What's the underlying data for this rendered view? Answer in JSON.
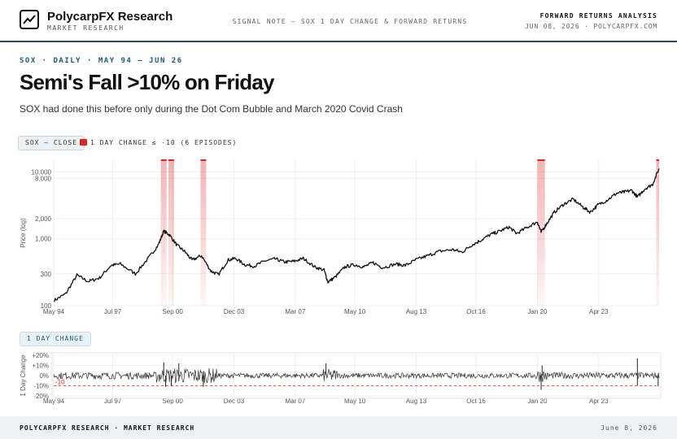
{
  "header": {
    "brand": "PolycarpFX Research",
    "brand_sub": "MARKET RESEARCH",
    "center": "SIGNAL NOTE — SOX 1 DAY CHANGE & FORWARD RETURNS",
    "right_title": "FORWARD RETURNS ANALYSIS",
    "right_sub": "JUN 08, 2026 · POLYCARPFX.COM"
  },
  "eyebrow": "SOX · DAILY · MAY 94 — JUN 26",
  "title": "Semi's Fall >10% on Friday",
  "subtitle": "SOX had done this before only during the Dot Com Bubble and March 2020 Covid Crash",
  "colors": {
    "accent": "#1a5b7a",
    "episode": "#e02424",
    "line": "#111111"
  },
  "chart_data": [
    {
      "type": "line",
      "legend": {
        "series_label": "SOX — CLOSE",
        "episode_label": "1 DAY CHANGE ≤ -10 (6 EPISODES)",
        "position": "top-left"
      },
      "ylabel": "Price (log)",
      "scale": "log",
      "ylim": [
        100,
        15000
      ],
      "y_ticks": [
        {
          "value": 10000,
          "label": "10,000"
        },
        {
          "value": 8000,
          "label": "8,000"
        },
        {
          "value": 2000,
          "label": "2,000"
        },
        {
          "value": 1000,
          "label": "1,000"
        },
        {
          "value": 300,
          "label": "300"
        },
        {
          "value": 100,
          "label": "100"
        }
      ],
      "x_ticks": [
        "May 94",
        "Jul 97",
        "Sep 00",
        "Dec 03",
        "Mar 07",
        "May 10",
        "Aug 13",
        "Oct 16",
        "Jan 20",
        "Apr 23"
      ],
      "xlim": [
        1994.37,
        2026.45
      ],
      "x": [
        1994.4,
        1995.0,
        1995.6,
        1996.2,
        1996.8,
        1997.4,
        1997.9,
        1998.7,
        1999.4,
        1999.9,
        2000.2,
        2000.5,
        2000.9,
        2001.3,
        2001.7,
        2002.2,
        2002.7,
        2003.1,
        2003.6,
        2004.0,
        2004.5,
        2005.0,
        2005.6,
        2006.1,
        2006.6,
        2007.1,
        2007.6,
        2008.2,
        2008.7,
        2008.9,
        2009.3,
        2009.8,
        2010.3,
        2010.8,
        2011.3,
        2011.8,
        2012.5,
        2013.0,
        2013.6,
        2014.2,
        2014.8,
        2015.5,
        2016.0,
        2016.5,
        2017.0,
        2017.5,
        2018.0,
        2018.5,
        2018.9,
        2019.5,
        2020.0,
        2020.2,
        2020.5,
        2020.9,
        2021.4,
        2021.9,
        2022.4,
        2022.8,
        2023.2,
        2023.7,
        2024.2,
        2024.6,
        2025.0,
        2025.3,
        2025.7,
        2026.1,
        2026.45
      ],
      "y": [
        120,
        150,
        285,
        230,
        260,
        400,
        420,
        300,
        520,
        800,
        1300,
        1150,
        800,
        650,
        480,
        560,
        330,
        290,
        480,
        510,
        410,
        390,
        470,
        500,
        450,
        460,
        510,
        380,
        340,
        225,
        270,
        380,
        410,
        380,
        440,
        370,
        420,
        400,
        490,
        560,
        650,
        690,
        630,
        800,
        950,
        1150,
        1300,
        1500,
        1200,
        1500,
        1800,
        1250,
        1700,
        2500,
        3300,
        3900,
        3000,
        2500,
        3200,
        3800,
        4800,
        5000,
        5300,
        4200,
        5600,
        6500,
        11200
      ],
      "episodes": [
        {
          "label": "Dot Com Bubble",
          "start": 2000.05,
          "end": 2000.35
        },
        {
          "label": "Dot Com Bubble",
          "start": 2000.45,
          "end": 2000.75
        },
        {
          "label": "Dot Com Bubble",
          "start": 2002.15,
          "end": 2002.45
        },
        {
          "label": "Covid Crash",
          "start": 2020.0,
          "end": 2020.4
        },
        {
          "label": "Friday",
          "start": 2026.3,
          "end": 2026.45
        }
      ]
    },
    {
      "type": "line",
      "legend": {
        "series_label": "1 DAY CHANGE"
      },
      "ylabel": "1 Day Change",
      "ylim": [
        -20,
        20
      ],
      "y_ticks": [
        {
          "value": 20,
          "label": "+20%"
        },
        {
          "value": 10,
          "label": "+10%"
        },
        {
          "value": 0,
          "label": "0%"
        },
        {
          "value": -10,
          "label": "-10%"
        },
        {
          "value": -20,
          "label": "-20%"
        }
      ],
      "threshold": {
        "value": -10,
        "label": "-10"
      },
      "x_ticks": [
        "May 94",
        "Jul 97",
        "Sep 00",
        "Dec 03",
        "Mar 07",
        "May 10",
        "Aug 13",
        "Oct 16",
        "Jan 20",
        "Apr 23"
      ],
      "volatility": [
        {
          "start": 1994.37,
          "end": 1999.8,
          "amp": 3.5
        },
        {
          "start": 1999.8,
          "end": 2003.0,
          "amp": 7.5
        },
        {
          "start": 2003.0,
          "end": 2008.6,
          "amp": 2.5
        },
        {
          "start": 2008.6,
          "end": 2009.4,
          "amp": 6.5
        },
        {
          "start": 2009.4,
          "end": 2019.9,
          "amp": 2.6
        },
        {
          "start": 2019.9,
          "end": 2020.5,
          "amp": 6.5
        },
        {
          "start": 2020.5,
          "end": 2026.45,
          "amp": 3.2
        }
      ],
      "spikes": [
        {
          "x": 2000.2,
          "value": 13
        },
        {
          "x": 2000.3,
          "value": -11
        },
        {
          "x": 2000.6,
          "value": -10.5
        },
        {
          "x": 2001.0,
          "value": 12
        },
        {
          "x": 2002.3,
          "value": -11
        },
        {
          "x": 2008.8,
          "value": 12
        },
        {
          "x": 2020.2,
          "value": -14
        },
        {
          "x": 2020.25,
          "value": 10
        },
        {
          "x": 2025.3,
          "value": 17
        },
        {
          "x": 2025.3,
          "value": -10
        },
        {
          "x": 2026.4,
          "value": -10.5
        }
      ]
    }
  ],
  "footer": {
    "left": "POLYCARPFX RESEARCH · MARKET RESEARCH",
    "right": "June 8, 2026"
  }
}
